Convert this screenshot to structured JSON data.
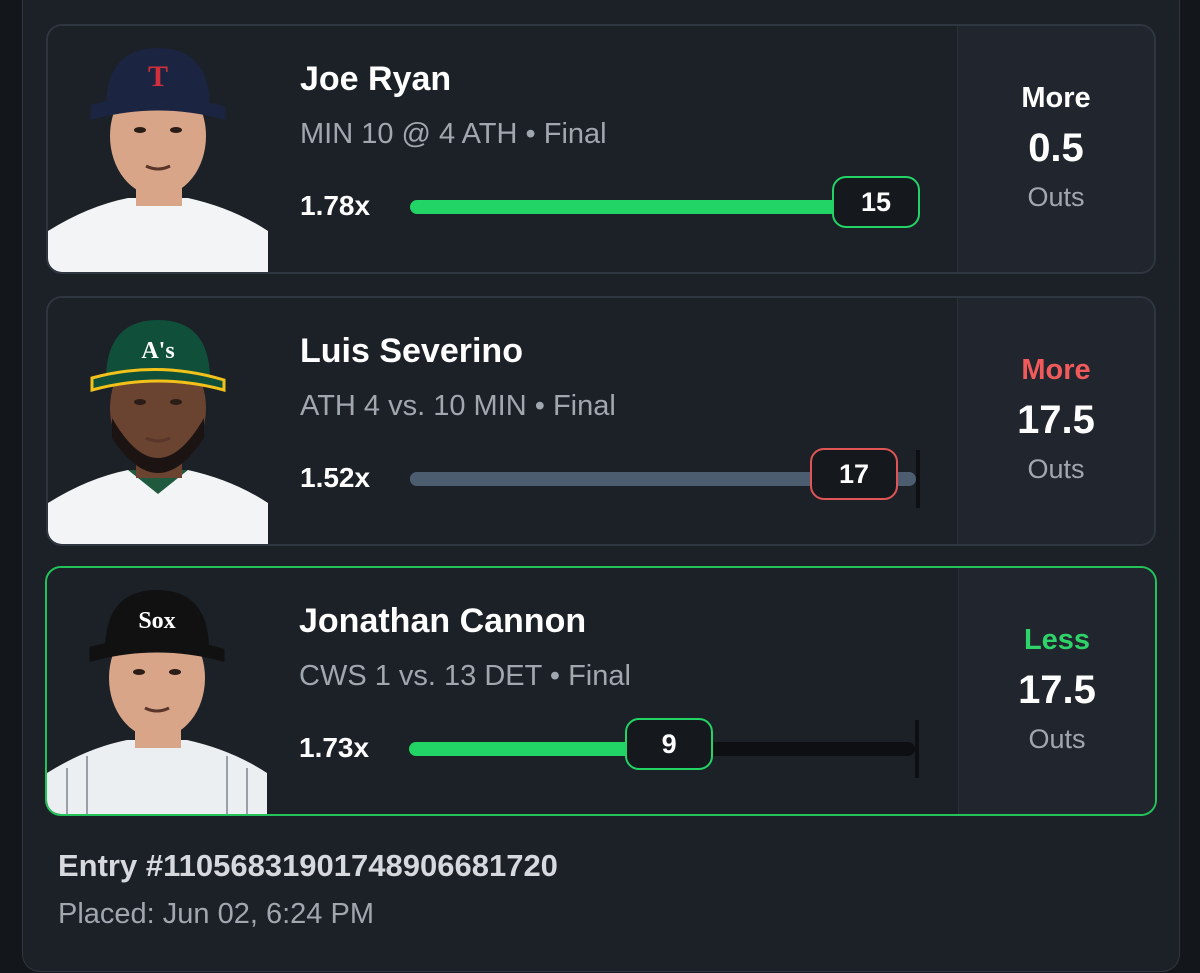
{
  "picks": [
    {
      "name": "Joe Ryan",
      "game": "MIN 10 @ 4 ATH • Final",
      "multiplier": "1.78x",
      "result": "15",
      "progress": 1.0,
      "direction": "More",
      "line": "0.5",
      "stat": "Outs",
      "team_logo": "T",
      "colors": {
        "direction": "#ffffff",
        "bar": "#22d365",
        "pill": "#22d365",
        "cap": "#1b2440"
      }
    },
    {
      "name": "Luis Severino",
      "game": "ATH 4 vs. 10 MIN • Final",
      "multiplier": "1.52x",
      "result": "17",
      "progress": 0.97,
      "direction": "More",
      "line": "17.5",
      "stat": "Outs",
      "team_logo": "A's",
      "colors": {
        "direction": "#f05a5a",
        "bar": "#4c5d70",
        "pill": "#e05555",
        "cap": "#10503a"
      }
    },
    {
      "name": "Jonathan Cannon",
      "game": "CWS 1 vs. 13 DET • Final",
      "multiplier": "1.73x",
      "result": "9",
      "progress": 0.514,
      "direction": "Less",
      "line": "17.5",
      "stat": "Outs",
      "team_logo": "Sox",
      "colors": {
        "direction": "#2ed46a",
        "bar": "#22d365",
        "pill": "#22d365",
        "cap": "#111111"
      }
    }
  ],
  "entry": {
    "label": "Entry #1105683190174890668172​0",
    "placed": "Placed: Jun 02, 6:24 PM"
  },
  "icons": [
    "player-headshot-icon"
  ]
}
